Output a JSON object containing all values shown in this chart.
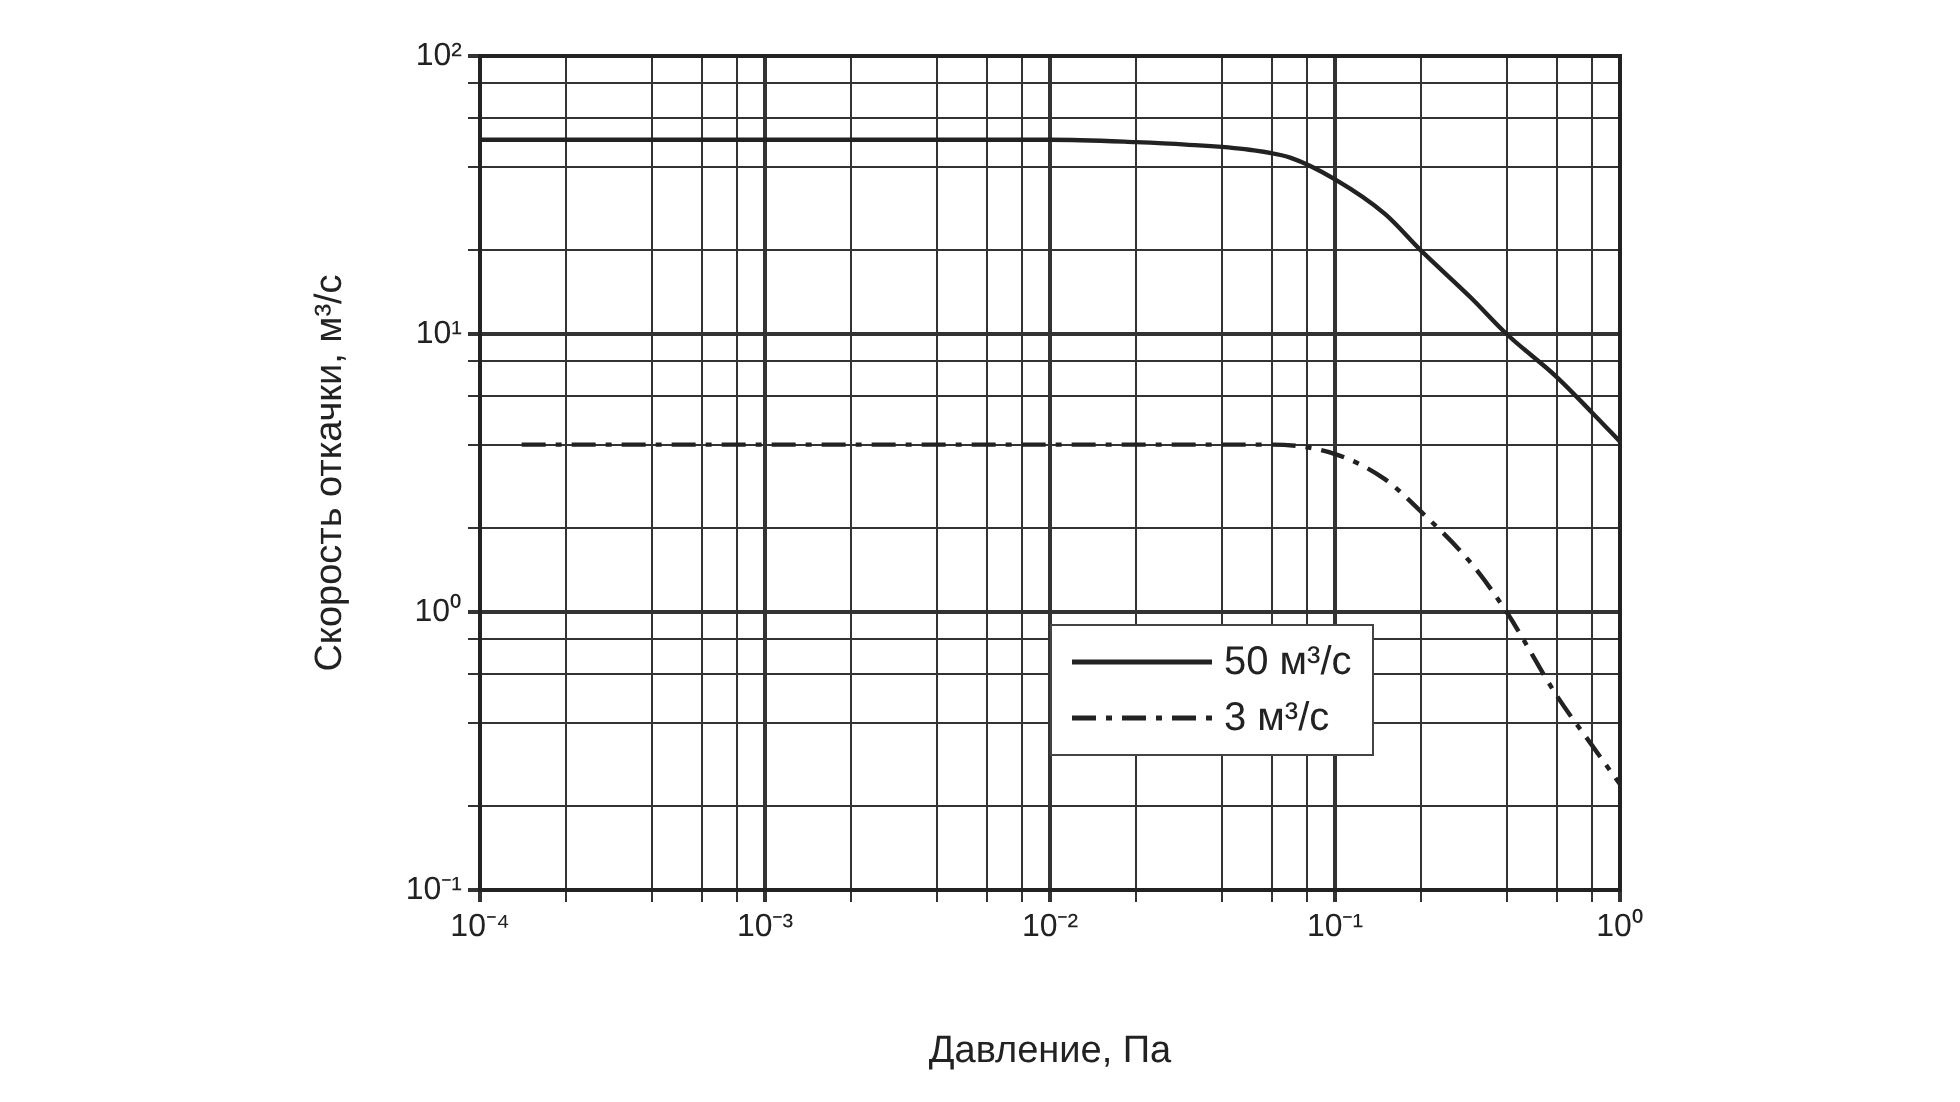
{
  "chart_data": {
    "type": "line",
    "xlabel": "Давление, Па",
    "ylabel": "Скорость откачки, м³/с",
    "log": "xy",
    "grid": true,
    "legend": "bottom",
    "marker": "none",
    "xlim": [
      0.0001,
      1
    ],
    "ylim": [
      0.1,
      100
    ],
    "xticks": [
      {
        "value": 0.0001,
        "label": "10⁻⁴"
      },
      {
        "value": 0.0002,
        "label": null
      },
      {
        "value": 0.0004,
        "label": null
      },
      {
        "value": 0.0006,
        "label": null
      },
      {
        "value": 0.0008,
        "label": null
      },
      {
        "value": 0.001,
        "label": "10⁻³"
      },
      {
        "value": 0.002,
        "label": null
      },
      {
        "value": 0.004,
        "label": null
      },
      {
        "value": 0.006,
        "label": null
      },
      {
        "value": 0.008,
        "label": null
      },
      {
        "value": 0.01,
        "label": "10⁻²"
      },
      {
        "value": 0.02,
        "label": null
      },
      {
        "value": 0.04,
        "label": null
      },
      {
        "value": 0.06,
        "label": null
      },
      {
        "value": 0.08,
        "label": null
      },
      {
        "value": 0.1,
        "label": "10⁻¹"
      },
      {
        "value": 0.2,
        "label": null
      },
      {
        "value": 0.4,
        "label": null
      },
      {
        "value": 0.6,
        "label": null
      },
      {
        "value": 0.8,
        "label": null
      },
      {
        "value": 1,
        "label": "10⁰"
      }
    ],
    "yticks": [
      {
        "value": 0.1,
        "label": "10⁻¹"
      },
      {
        "value": 0.2,
        "label": null
      },
      {
        "value": 0.4,
        "label": null
      },
      {
        "value": 0.6,
        "label": null
      },
      {
        "value": 0.8,
        "label": null
      },
      {
        "value": 1,
        "label": "10⁰"
      },
      {
        "value": 2,
        "label": null
      },
      {
        "value": 4,
        "label": null
      },
      {
        "value": 6,
        "label": null
      },
      {
        "value": 8,
        "label": null
      },
      {
        "value": 10,
        "label": "10¹"
      },
      {
        "value": 20,
        "label": null
      },
      {
        "value": 40,
        "label": null
      },
      {
        "value": 60,
        "label": null
      },
      {
        "value": 80,
        "label": null
      },
      {
        "value": 100,
        "label": "10²"
      }
    ],
    "series": [
      {
        "name": "50 м³/с",
        "color": "#222222",
        "line_style": "solid",
        "x": [
          0.0001,
          0.001,
          0.01,
          0.02,
          0.03,
          0.05,
          0.07,
          0.1,
          0.15,
          0.2,
          0.3,
          0.4,
          0.6,
          0.8,
          1
        ],
        "values": [
          50,
          50,
          50,
          49,
          48,
          46,
          43,
          36,
          27,
          20,
          13.5,
          10,
          7,
          5.2,
          4.1
        ]
      },
      {
        "name": "3 м³/с",
        "color": "#222222",
        "line_style": "dashed",
        "x": [
          0.00014,
          0.001,
          0.01,
          0.03,
          0.06,
          0.1,
          0.15,
          0.2,
          0.3,
          0.4,
          0.6,
          0.8,
          1
        ],
        "values": [
          4,
          4,
          4,
          4,
          4,
          3.7,
          3,
          2.3,
          1.5,
          1,
          0.5,
          0.33,
          0.24
        ]
      }
    ]
  }
}
